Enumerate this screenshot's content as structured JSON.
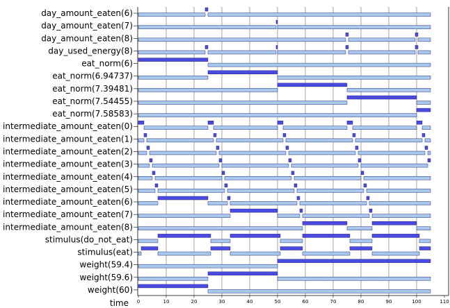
{
  "chart_data": {
    "type": "timeline",
    "title": "",
    "xlabel": "time",
    "xlim": [
      0,
      110
    ],
    "x_ticks": [
      "0",
      "10",
      "20",
      "30",
      "40",
      "50",
      "60",
      "70",
      "80",
      "90",
      "100",
      "110"
    ],
    "grid": "vertical",
    "colors": {
      "true": "#4a4ae0",
      "false": "#a8c8ec",
      "outline": "#2a2a7a"
    },
    "series": [
      {
        "name": "day_amount_eaten(6)",
        "true": [
          [
            24,
            25
          ]
        ]
      },
      {
        "name": "day_amount_eaten(7)",
        "true": [
          [
            49.5,
            50
          ]
        ]
      },
      {
        "name": "day_amount_eaten(8)",
        "true": [
          [
            74.5,
            75.5
          ],
          [
            99.5,
            100.5
          ]
        ]
      },
      {
        "name": "day_used_energy(8)",
        "true": [
          [
            24,
            25
          ],
          [
            49.5,
            50
          ],
          [
            74.5,
            75.5
          ],
          [
            99.5,
            100.5
          ]
        ]
      },
      {
        "name": "eat_norm(6)",
        "true": [
          [
            0,
            25
          ]
        ]
      },
      {
        "name": "eat_norm(6.94737)",
        "true": [
          [
            25,
            50
          ]
        ]
      },
      {
        "name": "eat_norm(7.39481)",
        "true": [
          [
            50,
            75
          ]
        ]
      },
      {
        "name": "eat_norm(7.54455)",
        "true": [
          [
            75,
            100
          ]
        ]
      },
      {
        "name": "eat_norm(7.58583)",
        "true": [
          [
            100,
            105
          ]
        ]
      },
      {
        "name": "intermediate_amount_eaten(0)",
        "true": [
          [
            0,
            2
          ],
          [
            25,
            27
          ],
          [
            50,
            52
          ],
          [
            75,
            77
          ],
          [
            100,
            102
          ]
        ]
      },
      {
        "name": "intermediate_amount_eaten(1)",
        "true": [
          [
            2,
            3
          ],
          [
            27,
            28
          ],
          [
            52,
            53
          ],
          [
            77,
            78
          ],
          [
            102,
            103
          ]
        ]
      },
      {
        "name": "intermediate_amount_eaten(2)",
        "true": [
          [
            3,
            4
          ],
          [
            28,
            29
          ],
          [
            53,
            54
          ],
          [
            78,
            79
          ],
          [
            103,
            104
          ]
        ]
      },
      {
        "name": "intermediate_amount_eaten(3)",
        "true": [
          [
            4,
            5
          ],
          [
            29,
            30
          ],
          [
            54,
            55
          ],
          [
            79,
            80
          ],
          [
            104,
            105
          ]
        ]
      },
      {
        "name": "intermediate_amount_eaten(4)",
        "true": [
          [
            5,
            6
          ],
          [
            30,
            31
          ],
          [
            55,
            56
          ],
          [
            80,
            81
          ]
        ]
      },
      {
        "name": "intermediate_amount_eaten(5)",
        "true": [
          [
            6,
            7
          ],
          [
            31,
            32
          ],
          [
            56,
            57
          ],
          [
            81,
            82
          ]
        ]
      },
      {
        "name": "intermediate_amount_eaten(6)",
        "true": [
          [
            7,
            25
          ],
          [
            32,
            33
          ],
          [
            57,
            58
          ],
          [
            82,
            83
          ]
        ]
      },
      {
        "name": "intermediate_amount_eaten(7)",
        "true": [
          [
            33,
            50
          ],
          [
            58,
            59
          ],
          [
            83,
            84
          ]
        ]
      },
      {
        "name": "intermediate_amount_eaten(8)",
        "true": [
          [
            59,
            75
          ],
          [
            84,
            100
          ]
        ]
      },
      {
        "name": "stimulus(do_not_eat)",
        "true": [
          [
            7,
            26
          ],
          [
            33,
            51
          ],
          [
            59,
            76
          ],
          [
            84,
            101
          ]
        ]
      },
      {
        "name": "stimulus(eat)",
        "true": [
          [
            1,
            7
          ],
          [
            26,
            33
          ],
          [
            51,
            59
          ],
          [
            76,
            84
          ],
          [
            101,
            105
          ]
        ]
      },
      {
        "name": "weight(59.4)",
        "true": [
          [
            50,
            105
          ]
        ]
      },
      {
        "name": "weight(59.6)",
        "true": [
          [
            25,
            50
          ]
        ]
      },
      {
        "name": "weight(60)",
        "true": [
          [
            0,
            25
          ]
        ]
      }
    ]
  }
}
